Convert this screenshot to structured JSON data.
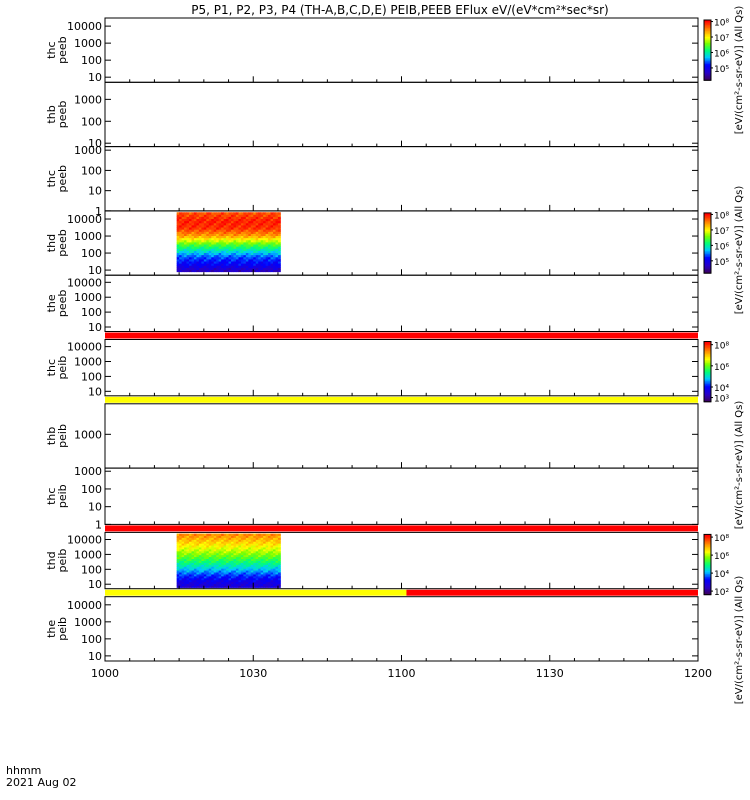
{
  "chart_data": {
    "type": "heatmap",
    "title": "P5, P1, P2, P3, P4 (TH-A,B,C,D,E) PEIB,PEEB EFlux eV/(eV*cm²*sec*sr)",
    "x": {
      "ticks": [
        1000,
        1030,
        1100,
        1130,
        1200
      ],
      "tick_minutes": [
        0,
        30,
        60,
        90,
        120
      ],
      "axis_label": "hhmm",
      "date_label": "2021 Aug 02",
      "range_minutes": [
        0,
        120
      ]
    },
    "yscale": "log",
    "colorscale": "rainbow (purple-blue-cyan-green-yellow-orange-red)",
    "panels": [
      {
        "label": "thc\npeeb",
        "probe": "thc",
        "instrument": "peeb",
        "ytick_labels": [
          "10000",
          "1000",
          "100",
          "10"
        ],
        "ytick_values": [
          10000,
          1000,
          100,
          10
        ],
        "ylim": [
          5,
          30000
        ],
        "data": null,
        "status_bar": null
      },
      {
        "label": "thb\npeeb",
        "probe": "thb",
        "instrument": "peeb",
        "ytick_labels": [
          "1000",
          "100",
          "10"
        ],
        "ytick_values": [
          1000,
          100,
          10
        ],
        "ylim": [
          7,
          6000
        ],
        "data": null,
        "status_bar": null
      },
      {
        "label": "thc\npeeb",
        "probe": "thc",
        "instrument": "peeb",
        "ytick_labels": [
          "1000",
          "100",
          "10",
          "1"
        ],
        "ytick_values": [
          1000,
          100,
          10,
          1
        ],
        "ylim": [
          1,
          1500
        ],
        "data": null,
        "status_bar": null
      },
      {
        "label": "thd\npeeb",
        "probe": "thd",
        "instrument": "peeb",
        "ytick_labels": [
          "10000",
          "1000",
          "100",
          "10"
        ],
        "ytick_values": [
          10000,
          1000,
          100,
          10
        ],
        "ylim": [
          5,
          30000
        ],
        "data": {
          "x_range_minutes": [
            14.5,
            35.5
          ],
          "energy_range": [
            8,
            25000
          ],
          "flux_level_by_energy": [
            {
              "energy": 20000,
              "level": 0.92
            },
            {
              "energy": 8000,
              "level": 0.97
            },
            {
              "energy": 3000,
              "level": 0.95
            },
            {
              "energy": 1000,
              "level": 0.82
            },
            {
              "energy": 400,
              "level": 0.62
            },
            {
              "energy": 150,
              "level": 0.44
            },
            {
              "energy": 60,
              "level": 0.3
            },
            {
              "energy": 20,
              "level": 0.22
            },
            {
              "energy": 10,
              "level": 0.12
            }
          ]
        },
        "status_bar": null
      },
      {
        "label": "the\npeeb",
        "probe": "the",
        "instrument": "peeb",
        "ytick_labels": [
          "10000",
          "1000",
          "100",
          "10"
        ],
        "ytick_values": [
          10000,
          1000,
          100,
          10
        ],
        "ylim": [
          5,
          30000
        ],
        "data": null,
        "status_bar": [
          {
            "from": 0,
            "to": 120,
            "color": "#ff0000"
          }
        ]
      },
      {
        "label": "thc\npeib",
        "probe": "thc",
        "instrument": "peib",
        "ytick_labels": [
          "10000",
          "1000",
          "100",
          "10"
        ],
        "ytick_values": [
          10000,
          1000,
          100,
          10
        ],
        "ylim": [
          5,
          30000
        ],
        "data": null,
        "status_bar": [
          {
            "from": 0,
            "to": 120,
            "color": "#ffff00"
          }
        ]
      },
      {
        "label": "thb\npeib",
        "probe": "thb",
        "instrument": "peib",
        "ytick_labels": [
          "1000"
        ],
        "ytick_values": [
          1000
        ],
        "ylim": [
          100,
          8000
        ],
        "data": null,
        "status_bar": null
      },
      {
        "label": "thc\npeib",
        "probe": "thc",
        "instrument": "peib",
        "ytick_labels": [
          "1000",
          "100",
          "10",
          "1"
        ],
        "ytick_values": [
          1000,
          100,
          10,
          1
        ],
        "ylim": [
          1,
          1500
        ],
        "data": null,
        "status_bar": [
          {
            "from": 0,
            "to": 120,
            "color": "#ff0000"
          }
        ]
      },
      {
        "label": "thd\npeib",
        "probe": "thd",
        "instrument": "peib",
        "ytick_labels": [
          "10000",
          "1000",
          "100",
          "10"
        ],
        "ytick_values": [
          10000,
          1000,
          100,
          10
        ],
        "ylim": [
          5,
          30000
        ],
        "data": {
          "x_range_minutes": [
            14.5,
            35.5
          ],
          "energy_range": [
            6,
            25000
          ],
          "flux_level_by_energy": [
            {
              "energy": 20000,
              "level": 0.85
            },
            {
              "energy": 10000,
              "level": 0.8
            },
            {
              "energy": 5000,
              "level": 0.75
            },
            {
              "energy": 2000,
              "level": 0.68
            },
            {
              "energy": 800,
              "level": 0.6
            },
            {
              "energy": 300,
              "level": 0.5
            },
            {
              "energy": 100,
              "level": 0.38
            },
            {
              "energy": 40,
              "level": 0.28
            },
            {
              "energy": 15,
              "level": 0.2
            },
            {
              "energy": 8,
              "level": 0.15
            }
          ]
        },
        "status_bar": [
          {
            "from": 0,
            "to": 61,
            "color": "#ffff00"
          },
          {
            "from": 61,
            "to": 120,
            "color": "#ff0000"
          }
        ]
      },
      {
        "label": "the\npeib",
        "probe": "the",
        "instrument": "peib",
        "ytick_labels": [
          "10000",
          "1000",
          "100",
          "10"
        ],
        "ytick_values": [
          10000,
          1000,
          100,
          10
        ],
        "ylim": [
          5,
          30000
        ],
        "data": null,
        "status_bar": null
      }
    ],
    "colorbars": [
      {
        "panel_span": [
          0,
          0
        ],
        "tick_labels": [
          "10⁸",
          "10⁷",
          "10⁶",
          "10⁵"
        ],
        "tick_exponents": [
          8,
          7,
          6,
          5
        ],
        "range_exponents": [
          4.2,
          8.1
        ]
      },
      {
        "panel_span": [
          3,
          3
        ],
        "tick_labels": [
          "10⁸",
          "10⁷",
          "10⁶",
          "10⁵"
        ],
        "tick_exponents": [
          8,
          7,
          6,
          5
        ],
        "range_exponents": [
          4.2,
          8.1
        ]
      },
      {
        "panel_span": [
          5,
          5
        ],
        "tick_labels": [
          "10⁸",
          "10⁶",
          "10⁴",
          "10³"
        ],
        "tick_exponents": [
          8,
          6,
          4,
          3
        ],
        "range_exponents": [
          2.6,
          8.3
        ]
      },
      {
        "panel_span": [
          8,
          8
        ],
        "tick_labels": [
          "10⁸",
          "10⁶",
          "10⁴",
          "10²"
        ],
        "tick_exponents": [
          8,
          6,
          4,
          2
        ],
        "range_exponents": [
          1.6,
          8.3
        ]
      }
    ],
    "colorbar_labels": [
      "[eV/(cm²-s-sr-eV)] (All Qs)",
      "[eV/(cm²-s-sr-eV)] (All Qs)",
      "[eV/(cm²-s-sr-eV)] (All Qs)",
      "[eV/(cm²-s-sr-eV)] (All Qs)"
    ]
  }
}
